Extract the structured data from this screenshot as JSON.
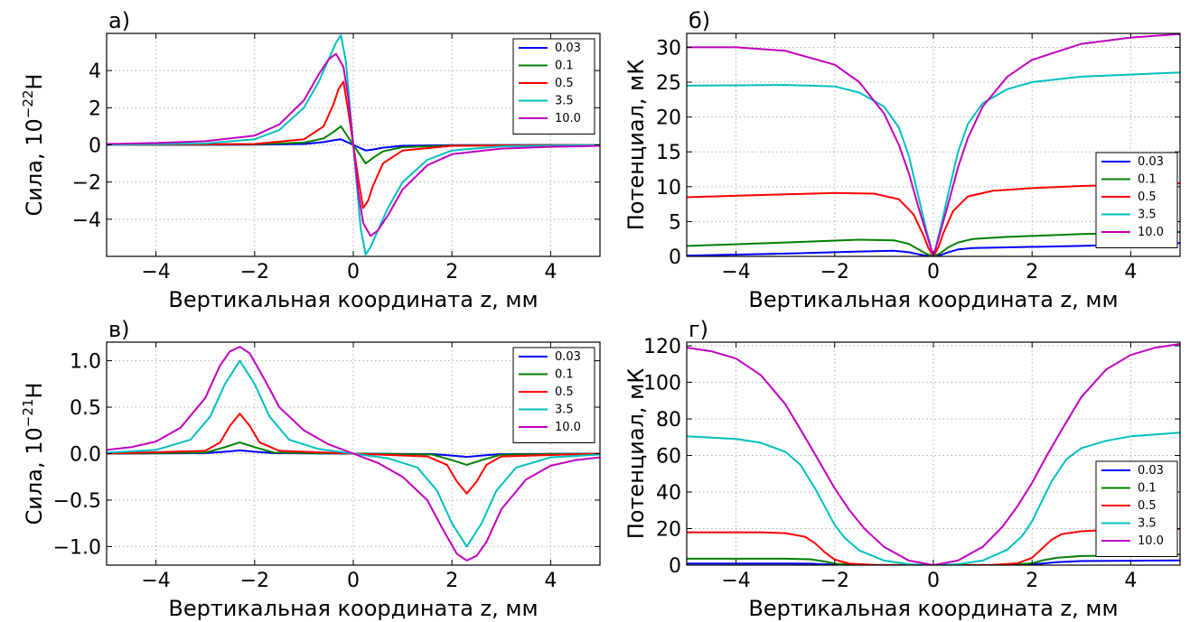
{
  "colors": {
    "series": [
      "#0000ff",
      "#007f00",
      "#ff0000",
      "#00bfbf",
      "#bf00bf"
    ]
  },
  "chart_data": [
    {
      "id": "a",
      "type": "line",
      "panel_label": "а)",
      "xlabel": "Вертикальная координата z, мм",
      "ylabel": "Сила, 10^-22 Н",
      "ylabel_parts": {
        "prefix": "Сила, ",
        "base": "10",
        "exponent": "−22",
        "unit": "Н"
      },
      "xlim": [
        -5,
        5
      ],
      "ylim": [
        -6,
        6
      ],
      "xticks": [
        -4,
        -2,
        0,
        2,
        4
      ],
      "xtick_labels": [
        "−4",
        "−2",
        "0",
        "2",
        "4"
      ],
      "yticks": [
        -4,
        -2,
        0,
        2,
        4
      ],
      "ytick_labels": [
        "−4",
        "−2",
        "0",
        "2",
        "4"
      ],
      "grid": true,
      "legend": "top-right",
      "series": [
        {
          "name": "0.03",
          "x": [
            -5,
            -2,
            -1,
            -0.6,
            -0.4,
            -0.25,
            -0.1,
            0,
            0.1,
            0.25,
            0.4,
            0.6,
            1,
            2,
            5
          ],
          "y": [
            0,
            0.01,
            0.05,
            0.15,
            0.25,
            0.3,
            0.12,
            0,
            -0.12,
            -0.3,
            -0.25,
            -0.15,
            -0.05,
            -0.01,
            0
          ]
        },
        {
          "name": "0.1",
          "x": [
            -5,
            -2,
            -1,
            -0.6,
            -0.4,
            -0.25,
            -0.1,
            0,
            0.1,
            0.25,
            0.4,
            0.6,
            1,
            2,
            5
          ],
          "y": [
            0,
            0.03,
            0.12,
            0.35,
            0.7,
            1.0,
            0.4,
            0,
            -0.4,
            -1.0,
            -0.7,
            -0.35,
            -0.12,
            -0.03,
            0
          ]
        },
        {
          "name": "0.5",
          "x": [
            -5,
            -2,
            -1,
            -0.6,
            -0.4,
            -0.3,
            -0.2,
            -0.1,
            0,
            0.1,
            0.2,
            0.3,
            0.4,
            0.6,
            1,
            2,
            5
          ],
          "y": [
            0,
            0.05,
            0.3,
            1.0,
            2.2,
            3.0,
            3.4,
            1.8,
            0,
            -1.8,
            -3.4,
            -3.0,
            -2.2,
            -1.0,
            -0.3,
            -0.05,
            0
          ]
        },
        {
          "name": "3.5",
          "x": [
            -5,
            -3,
            -2,
            -1.5,
            -1,
            -0.7,
            -0.5,
            -0.35,
            -0.25,
            -0.15,
            0,
            0.15,
            0.25,
            0.35,
            0.5,
            0.7,
            1,
            1.5,
            2,
            3,
            5
          ],
          "y": [
            0,
            0.08,
            0.3,
            0.8,
            2.0,
            3.4,
            4.6,
            5.5,
            5.9,
            4.5,
            0,
            -4.5,
            -5.9,
            -5.5,
            -4.6,
            -3.4,
            -2.0,
            -0.8,
            -0.3,
            -0.08,
            0
          ]
        },
        {
          "name": "10.0",
          "x": [
            -5,
            -4,
            -3,
            -2,
            -1.5,
            -1,
            -0.7,
            -0.5,
            -0.35,
            -0.2,
            -0.1,
            0,
            0.1,
            0.2,
            0.35,
            0.5,
            0.7,
            1,
            1.5,
            2,
            3,
            4,
            5
          ],
          "y": [
            0.05,
            0.1,
            0.2,
            0.5,
            1.1,
            2.4,
            3.8,
            4.6,
            4.9,
            4.2,
            2.5,
            0,
            -2.5,
            -4.2,
            -4.9,
            -4.6,
            -3.8,
            -2.4,
            -1.1,
            -0.5,
            -0.2,
            -0.1,
            -0.05
          ]
        }
      ]
    },
    {
      "id": "b",
      "type": "line",
      "panel_label": "б)",
      "xlabel": "Вертикальная координата z, мм",
      "ylabel": "Потенциал, мК",
      "xlim": [
        -5,
        5
      ],
      "ylim": [
        0,
        32
      ],
      "xticks": [
        -4,
        -2,
        0,
        2,
        4
      ],
      "xtick_labels": [
        "−4",
        "−2",
        "0",
        "2",
        "4"
      ],
      "yticks": [
        0,
        5,
        10,
        15,
        20,
        25,
        30
      ],
      "ytick_labels": [
        "0",
        "5",
        "10",
        "15",
        "20",
        "25",
        "30"
      ],
      "grid": true,
      "legend": "lower-right",
      "series": [
        {
          "name": "0.03",
          "x": [
            -5,
            -3,
            -1.5,
            -0.8,
            -0.5,
            -0.3,
            -0.15,
            0,
            0.15,
            0.3,
            0.5,
            0.8,
            1.5,
            3,
            5
          ],
          "y": [
            0.1,
            0.4,
            0.7,
            0.8,
            0.6,
            0.3,
            0.1,
            0,
            0.2,
            0.6,
            1.0,
            1.2,
            1.3,
            1.5,
            1.9
          ]
        },
        {
          "name": "0.1",
          "x": [
            -5,
            -3,
            -1.5,
            -0.8,
            -0.5,
            -0.3,
            -0.15,
            0,
            0.15,
            0.3,
            0.5,
            0.8,
            1.5,
            3,
            5
          ],
          "y": [
            1.5,
            2.0,
            2.4,
            2.3,
            1.8,
            1.0,
            0.4,
            0,
            0.5,
            1.3,
            2.0,
            2.5,
            2.8,
            3.2,
            3.5
          ]
        },
        {
          "name": "0.5",
          "x": [
            -5,
            -3,
            -2,
            -1.2,
            -0.7,
            -0.4,
            -0.2,
            -0.1,
            0,
            0.1,
            0.2,
            0.4,
            0.7,
            1.2,
            2,
            3,
            5
          ],
          "y": [
            8.5,
            8.9,
            9.1,
            9.0,
            8.2,
            6.0,
            3.0,
            1.2,
            0,
            1.3,
            3.3,
            6.5,
            8.6,
            9.4,
            9.8,
            10.1,
            10.5
          ]
        },
        {
          "name": "3.5",
          "x": [
            -5,
            -3,
            -2,
            -1.5,
            -1,
            -0.7,
            -0.5,
            -0.3,
            -0.15,
            0,
            0.15,
            0.3,
            0.5,
            0.7,
            1,
            1.5,
            2,
            3,
            5
          ],
          "y": [
            24.5,
            24.6,
            24.4,
            23.5,
            21.5,
            18.5,
            14.5,
            8.5,
            4.0,
            0,
            4.2,
            9.0,
            15.0,
            19.0,
            22.0,
            24.0,
            25.0,
            25.8,
            26.4
          ]
        },
        {
          "name": "10.0",
          "x": [
            -5,
            -4,
            -3,
            -2,
            -1.5,
            -1,
            -0.7,
            -0.5,
            -0.3,
            -0.15,
            0,
            0.15,
            0.3,
            0.5,
            0.7,
            1,
            1.5,
            2,
            3,
            4,
            5
          ],
          "y": [
            30.0,
            30.0,
            29.5,
            27.5,
            25.0,
            20.5,
            16.0,
            12.0,
            7.0,
            3.5,
            0,
            3.7,
            7.5,
            12.8,
            17.0,
            21.5,
            25.8,
            28.2,
            30.5,
            31.4,
            31.9
          ]
        }
      ]
    },
    {
      "id": "c",
      "type": "line",
      "panel_label": "в)",
      "xlabel": "Вертикальная координата z, мм",
      "ylabel": "Сила, 10^-21 Н",
      "ylabel_parts": {
        "prefix": "Сила, ",
        "base": "10",
        "exponent": "−21",
        "unit": "Н"
      },
      "xlim": [
        -5,
        5
      ],
      "ylim": [
        -1.2,
        1.2
      ],
      "xticks": [
        -4,
        -2,
        0,
        2,
        4
      ],
      "xtick_labels": [
        "−4",
        "−2",
        "0",
        "2",
        "4"
      ],
      "yticks": [
        -1.0,
        -0.5,
        0.0,
        0.5,
        1.0
      ],
      "ytick_labels": [
        "−1.0",
        "−0.5",
        "0.0",
        "0.5",
        "1.0"
      ],
      "grid": true,
      "legend": "top-right",
      "series": [
        {
          "name": "0.03",
          "x": [
            -5,
            -3,
            -2.6,
            -2.3,
            -2.0,
            -1.6,
            0,
            1.6,
            2.0,
            2.3,
            2.6,
            3,
            5
          ],
          "y": [
            0,
            0.005,
            0.02,
            0.035,
            0.02,
            0.005,
            0,
            -0.005,
            -0.02,
            -0.035,
            -0.02,
            -0.005,
            0
          ]
        },
        {
          "name": "0.1",
          "x": [
            -5,
            -3,
            -2.6,
            -2.3,
            -2.0,
            -1.6,
            0,
            1.6,
            2.0,
            2.3,
            2.6,
            3,
            5
          ],
          "y": [
            0,
            0.01,
            0.07,
            0.12,
            0.07,
            0.01,
            0,
            -0.01,
            -0.07,
            -0.12,
            -0.07,
            -0.01,
            0
          ]
        },
        {
          "name": "0.5",
          "x": [
            -5,
            -3,
            -2.7,
            -2.5,
            -2.3,
            -2.1,
            -1.9,
            -1.5,
            0,
            1.5,
            1.9,
            2.1,
            2.3,
            2.5,
            2.7,
            3,
            5
          ],
          "y": [
            0,
            0.03,
            0.12,
            0.3,
            0.43,
            0.3,
            0.12,
            0.03,
            0,
            -0.03,
            -0.12,
            -0.3,
            -0.43,
            -0.3,
            -0.12,
            -0.03,
            0
          ]
        },
        {
          "name": "3.5",
          "x": [
            -5,
            -4,
            -3.3,
            -2.9,
            -2.6,
            -2.3,
            -2.0,
            -1.7,
            -1.3,
            -0.7,
            0,
            0.7,
            1.3,
            1.7,
            2.0,
            2.3,
            2.6,
            2.9,
            3.3,
            4,
            5
          ],
          "y": [
            0.01,
            0.04,
            0.15,
            0.4,
            0.75,
            1.0,
            0.75,
            0.4,
            0.15,
            0.05,
            0,
            -0.05,
            -0.15,
            -0.4,
            -0.75,
            -1.0,
            -0.75,
            -0.4,
            -0.15,
            -0.04,
            -0.01
          ]
        },
        {
          "name": "10.0",
          "x": [
            -5,
            -4.5,
            -4,
            -3.5,
            -3,
            -2.7,
            -2.5,
            -2.3,
            -2.1,
            -1.8,
            -1.5,
            -1,
            -0.5,
            0,
            0.5,
            1,
            1.5,
            1.8,
            2.1,
            2.3,
            2.5,
            2.7,
            3,
            3.5,
            4,
            4.5,
            5
          ],
          "y": [
            0.04,
            0.07,
            0.13,
            0.28,
            0.6,
            0.95,
            1.1,
            1.15,
            1.08,
            0.8,
            0.5,
            0.25,
            0.1,
            0,
            -0.1,
            -0.25,
            -0.5,
            -0.8,
            -1.08,
            -1.15,
            -1.1,
            -0.95,
            -0.6,
            -0.28,
            -0.13,
            -0.07,
            -0.04
          ]
        }
      ]
    },
    {
      "id": "d",
      "type": "line",
      "panel_label": "г)",
      "xlabel": "Вертикальная координата z, мм",
      "ylabel": "Потенциал, мК",
      "xlim": [
        -5,
        5
      ],
      "ylim": [
        0,
        122
      ],
      "xticks": [
        -4,
        -2,
        0,
        2,
        4
      ],
      "xtick_labels": [
        "−4",
        "−2",
        "0",
        "2",
        "4"
      ],
      "yticks": [
        0,
        20,
        40,
        60,
        80,
        100,
        120
      ],
      "ytick_labels": [
        "0",
        "20",
        "40",
        "60",
        "80",
        "100",
        "120"
      ],
      "grid": true,
      "legend": "lower-right",
      "series": [
        {
          "name": "0.03",
          "x": [
            -5,
            -3,
            -2.5,
            -2.2,
            -2,
            -1.5,
            0,
            1.5,
            2,
            2.2,
            2.5,
            3,
            5
          ],
          "y": [
            0.9,
            0.9,
            0.8,
            0.5,
            0.2,
            0.05,
            0,
            0.05,
            0.4,
            0.9,
            1.6,
            2.2,
            2.6
          ]
        },
        {
          "name": "0.1",
          "x": [
            -5,
            -3,
            -2.5,
            -2.2,
            -2,
            -1.5,
            0,
            1.5,
            2,
            2.2,
            2.5,
            3,
            5
          ],
          "y": [
            3.5,
            3.5,
            3.2,
            2.0,
            0.8,
            0.1,
            0,
            0.1,
            1.0,
            2.5,
            4.0,
            5.0,
            5.8
          ]
        },
        {
          "name": "0.5",
          "x": [
            -5,
            -3.5,
            -3,
            -2.6,
            -2.4,
            -2.2,
            -2.0,
            -1.7,
            -1.2,
            0,
            1.2,
            1.7,
            2.0,
            2.2,
            2.4,
            2.6,
            3,
            3.5,
            5
          ],
          "y": [
            18,
            18,
            17.5,
            15.5,
            12,
            7,
            3,
            0.8,
            0.1,
            0,
            0.1,
            1.0,
            4,
            9,
            14,
            17,
            18.5,
            19.2,
            19.8
          ]
        },
        {
          "name": "3.5",
          "x": [
            -5,
            -4,
            -3.5,
            -3,
            -2.7,
            -2.4,
            -2.2,
            -2,
            -1.8,
            -1.5,
            -1,
            -0.5,
            0,
            0.5,
            1,
            1.5,
            1.8,
            2,
            2.2,
            2.4,
            2.7,
            3,
            3.5,
            4,
            5
          ],
          "y": [
            70.5,
            69,
            67,
            62,
            55,
            42,
            32,
            22,
            15,
            8,
            2.5,
            0.5,
            0,
            0.5,
            2.5,
            8.5,
            16,
            24,
            35,
            46,
            58,
            64,
            68,
            70.5,
            72.5
          ]
        },
        {
          "name": "10.0",
          "x": [
            -5,
            -4.5,
            -4,
            -3.5,
            -3,
            -2.6,
            -2.3,
            -2,
            -1.7,
            -1.4,
            -1,
            -0.5,
            0,
            0.5,
            1,
            1.4,
            1.7,
            2,
            2.3,
            2.6,
            3,
            3.5,
            4,
            4.5,
            5
          ],
          "y": [
            119,
            117,
            113,
            104,
            88,
            70,
            56,
            42,
            30,
            20,
            10,
            2.5,
            0,
            2.5,
            10,
            21,
            32,
            45,
            60,
            74,
            92,
            107,
            115,
            119,
            121
          ]
        }
      ]
    }
  ]
}
